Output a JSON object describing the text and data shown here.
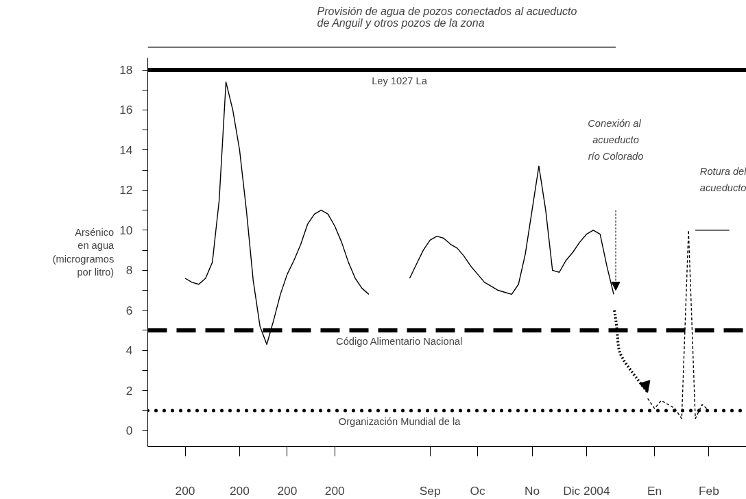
{
  "chart_data": {
    "type": "line",
    "title": "Provisión de agua de pozos conectados al acueducto\nde Anguil y otros pozos de la zona",
    "ylabel": "Arsénico\nen agua\n(microgramos\npor litro)",
    "categories": [
      null,
      null,
      null,
      null,
      "200",
      null,
      null,
      null,
      null,
      null,
      null,
      null,
      "200",
      null,
      null,
      null,
      null,
      null,
      null,
      "200",
      null,
      null,
      null,
      null,
      null,
      null,
      "200",
      null,
      null,
      null,
      null,
      null,
      null,
      null,
      null,
      null,
      null,
      null,
      null,
      null,
      "Sep",
      null,
      null,
      null,
      null,
      null,
      null,
      "Oc",
      null,
      null,
      null,
      null,
      null,
      null,
      null,
      "No",
      null,
      null,
      null,
      null,
      null,
      null,
      null,
      "Dic 2004",
      null,
      null,
      null,
      null,
      null,
      null,
      null,
      null,
      null,
      "En",
      null,
      null,
      null,
      null,
      null,
      null,
      null,
      "Feb",
      null,
      null,
      null,
      null,
      null
    ],
    "ylim": [
      -0.8,
      18.6
    ],
    "grid": false,
    "yticks": [
      0,
      {
        "value": 1,
        "label": null
      },
      2,
      {
        "value": 3,
        "label": null
      },
      4,
      {
        "value": 5,
        "label": null
      },
      6,
      {
        "value": 7,
        "label": null
      },
      8,
      {
        "value": 9,
        "label": null
      },
      10,
      {
        "value": 11,
        "label": null
      },
      12,
      {
        "value": 13,
        "label": null
      },
      14,
      {
        "value": 15,
        "label": null
      },
      16,
      {
        "value": 17,
        "label": null
      },
      18
    ],
    "series": [
      {
        "color": "#000000",
        "line_style": "solid",
        "values": [
          null,
          null,
          null,
          null,
          7.6,
          7.4,
          7.3,
          7.6,
          8.4,
          11.5,
          17.4,
          16.0,
          14.0,
          11.0,
          7.5,
          5.2,
          4.3,
          5.5,
          6.8,
          7.8,
          8.5,
          9.3,
          10.3,
          10.8,
          11.0,
          10.8,
          10.2,
          9.4,
          8.4,
          7.6,
          7.1,
          6.8,
          null,
          null,
          null,
          null,
          null,
          null,
          null,
          null,
          null,
          null,
          null,
          null,
          null,
          null,
          null,
          null,
          null,
          null,
          null,
          null,
          null,
          null,
          null,
          null,
          null,
          null,
          null,
          null,
          null,
          null,
          null,
          null,
          null,
          null,
          null,
          null,
          null,
          null,
          null,
          null,
          null,
          null,
          null,
          null,
          null,
          null,
          null,
          null,
          null,
          null,
          null,
          null,
          null,
          null,
          null
        ]
      },
      {
        "color": "#000000",
        "line_style": "solid",
        "values": [
          null,
          null,
          null,
          null,
          null,
          null,
          null,
          null,
          null,
          null,
          null,
          null,
          null,
          null,
          null,
          null,
          null,
          null,
          null,
          null,
          null,
          null,
          null,
          null,
          null,
          null,
          null,
          null,
          null,
          null,
          null,
          null,
          null,
          null,
          null,
          null,
          null,
          7.6,
          8.3,
          9.0,
          9.5,
          9.7,
          9.6,
          9.3,
          9.1,
          8.7,
          8.2,
          7.8,
          7.4,
          7.2,
          7.0,
          6.9,
          6.8,
          7.3,
          8.8,
          11.0,
          13.2,
          11.0,
          8.0,
          7.9,
          8.5,
          8.9,
          9.4,
          9.8,
          10.0,
          9.8,
          8.2,
          6.8,
          null,
          null,
          null,
          null,
          null,
          null,
          null,
          null,
          null,
          null,
          null,
          null,
          null,
          null,
          null,
          null,
          null,
          null,
          null
        ]
      },
      {
        "color": "#000000",
        "line_style": "dashed",
        "values": [
          null,
          null,
          null,
          null,
          null,
          null,
          null,
          null,
          null,
          null,
          null,
          null,
          null,
          null,
          null,
          null,
          null,
          null,
          null,
          null,
          null,
          null,
          null,
          null,
          null,
          null,
          null,
          null,
          null,
          null,
          null,
          null,
          null,
          null,
          null,
          null,
          null,
          null,
          null,
          null,
          null,
          null,
          null,
          null,
          null,
          null,
          null,
          null,
          null,
          null,
          null,
          null,
          null,
          null,
          null,
          null,
          null,
          null,
          null,
          null,
          null,
          null,
          null,
          null,
          null,
          null,
          null,
          null,
          null,
          null,
          null,
          null,
          1.6,
          1.1,
          1.5,
          1.3,
          1.1,
          0.6,
          10.0,
          0.6,
          1.3,
          1.0,
          null,
          null,
          null,
          null,
          null
        ]
      },
      {
        "color": "#000000",
        "line_style": "solid",
        "values": [
          null,
          null,
          null,
          null,
          null,
          null,
          null,
          null,
          null,
          null,
          null,
          null,
          null,
          null,
          null,
          null,
          null,
          null,
          null,
          null,
          null,
          null,
          null,
          null,
          null,
          null,
          null,
          null,
          null,
          null,
          null,
          null,
          null,
          null,
          null,
          null,
          null,
          null,
          null,
          null,
          null,
          null,
          null,
          null,
          null,
          null,
          null,
          null,
          null,
          null,
          null,
          null,
          null,
          null,
          null,
          null,
          null,
          null,
          null,
          null,
          null,
          null,
          null,
          null,
          null,
          null,
          null,
          null,
          null,
          null,
          null,
          null,
          null,
          null,
          null,
          null,
          null,
          null,
          null,
          10.0,
          10.0,
          10.0,
          10.0,
          10.0,
          10.0,
          null,
          null
        ]
      }
    ],
    "ref_lines": [
      {
        "axis": "y",
        "value": 18,
        "label": "Ley 1027 La",
        "color": "#000000",
        "line_style": "solid"
      },
      {
        "axis": "y",
        "value": 5,
        "label": "Código Alimentario Nacional",
        "color": "#000000",
        "line_style": "dashed"
      },
      {
        "axis": "y",
        "value": 1,
        "label": "Organización Mundial de la",
        "color": "#000000",
        "line_style": "dotted"
      }
    ],
    "annotations": [
      "Conexión  al\nacueducto\nrío Colorado",
      "Rotura del\nacueducto"
    ]
  }
}
